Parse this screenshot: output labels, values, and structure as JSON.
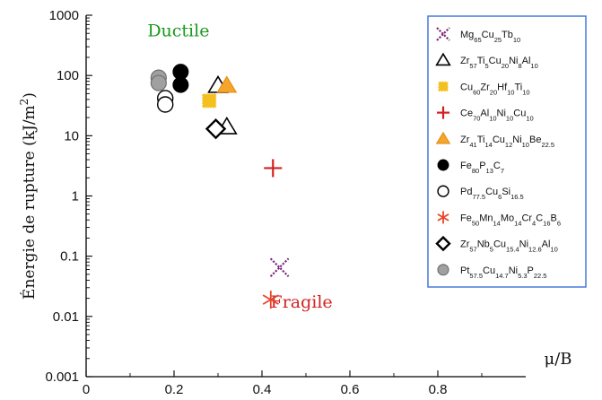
{
  "chart_data": {
    "type": "scatter",
    "title": "",
    "xlabel": "μ/B",
    "ylabel": "Énergie de rupture (kJ/m²)",
    "ylabel_parts": [
      {
        "t": "Énergie de rupture (kJ/m",
        "sup": false
      },
      {
        "t": "2",
        "sup": true
      },
      {
        "t": ")",
        "sup": false
      }
    ],
    "xlim": [
      0,
      1.0
    ],
    "ylim": [
      0.001,
      1000
    ],
    "yscale": "log",
    "x_ticks": [
      0,
      0.2,
      0.4,
      0.6,
      0.8
    ],
    "x_tick_labels": [
      "0",
      "0.2",
      "0.4",
      "0.6",
      "0.8"
    ],
    "y_ticks": [
      0.001,
      0.01,
      0.1,
      1,
      10,
      100,
      1000
    ],
    "y_tick_labels": [
      "0.001",
      "0.01",
      "0.1",
      "1",
      "10",
      "100",
      "1000"
    ],
    "grid": false,
    "legend_position": "top-right",
    "annotations": [
      {
        "text": "Ductile",
        "x": 0.21,
        "y": 450,
        "color": "#1a9a1a"
      },
      {
        "text": "Fragile",
        "x": 0.49,
        "y": 0.014,
        "color": "#d42020"
      }
    ],
    "series": [
      {
        "name": "Mg65Cu25Tb10",
        "label": [
          {
            "t": "Mg",
            "s": false
          },
          {
            "t": "65",
            "s": true
          },
          {
            "t": "Cu",
            "s": false
          },
          {
            "t": "25",
            "s": true
          },
          {
            "t": "Tb",
            "s": false
          },
          {
            "t": "10",
            "s": true
          }
        ],
        "marker": "x",
        "color": "#7a2a7a",
        "points": [
          {
            "x": 0.44,
            "y": 0.065
          }
        ]
      },
      {
        "name": "Zr57Ti5Cu20Ni8Al10",
        "label": [
          {
            "t": "Zr",
            "s": false
          },
          {
            "t": "57",
            "s": true
          },
          {
            "t": "Ti",
            "s": false
          },
          {
            "t": "5",
            "s": true
          },
          {
            "t": "Cu",
            "s": false
          },
          {
            "t": "20",
            "s": true
          },
          {
            "t": "Ni",
            "s": false
          },
          {
            "t": "8",
            "s": true
          },
          {
            "t": "Al",
            "s": false
          },
          {
            "t": "10",
            "s": true
          }
        ],
        "marker": "triangle-open",
        "color": "#000000",
        "points": [
          {
            "x": 0.3,
            "y": 68
          },
          {
            "x": 0.32,
            "y": 14
          }
        ]
      },
      {
        "name": "Cu60Zr20Hf10Ti10",
        "label": [
          {
            "t": "Cu",
            "s": false
          },
          {
            "t": "60",
            "s": true
          },
          {
            "t": "Zr",
            "s": false
          },
          {
            "t": "20",
            "s": true
          },
          {
            "t": "Hf",
            "s": false
          },
          {
            "t": "10",
            "s": true
          },
          {
            "t": "Ti",
            "s": false
          },
          {
            "t": "10",
            "s": true
          }
        ],
        "marker": "square-dotted",
        "color": "#f4c020",
        "points": [
          {
            "x": 0.28,
            "y": 38
          }
        ]
      },
      {
        "name": "Ce70Al10Ni10Cu10",
        "label": [
          {
            "t": "Ce",
            "s": false
          },
          {
            "t": "70",
            "s": true
          },
          {
            "t": "Al",
            "s": false
          },
          {
            "t": "10",
            "s": true
          },
          {
            "t": "Ni",
            "s": false
          },
          {
            "t": "10",
            "s": true
          },
          {
            "t": "Cu",
            "s": false
          },
          {
            "t": "10",
            "s": true
          }
        ],
        "marker": "plus",
        "color": "#d42020",
        "points": [
          {
            "x": 0.425,
            "y": 2.9
          }
        ]
      },
      {
        "name": "Zr41Ti14Cu12Ni10Be22.5",
        "label": [
          {
            "t": "Zr",
            "s": false
          },
          {
            "t": "41",
            "s": true
          },
          {
            "t": "Ti",
            "s": false
          },
          {
            "t": "14",
            "s": true
          },
          {
            "t": "Cu",
            "s": false
          },
          {
            "t": "12",
            "s": true
          },
          {
            "t": "Ni",
            "s": false
          },
          {
            "t": "10",
            "s": true
          },
          {
            "t": "Be",
            "s": false
          },
          {
            "t": "22.5",
            "s": true
          }
        ],
        "marker": "triangle-filled",
        "color": "#f4a52a",
        "points": [
          {
            "x": 0.32,
            "y": 68
          }
        ]
      },
      {
        "name": "Fe80P13C7",
        "label": [
          {
            "t": "Fe",
            "s": false
          },
          {
            "t": "80",
            "s": true
          },
          {
            "t": "P",
            "s": false
          },
          {
            "t": "13",
            "s": true
          },
          {
            "t": "C",
            "s": false
          },
          {
            "t": "7",
            "s": true
          }
        ],
        "marker": "circle-filled",
        "color": "#000000",
        "points": [
          {
            "x": 0.215,
            "y": 115
          },
          {
            "x": 0.215,
            "y": 70
          }
        ]
      },
      {
        "name": "Pd77.5Cu6Si16.5",
        "label": [
          {
            "t": "Pd",
            "s": false
          },
          {
            "t": "77.5",
            "s": true
          },
          {
            "t": "Cu",
            "s": false
          },
          {
            "t": "6",
            "s": true
          },
          {
            "t": "Si",
            "s": false
          },
          {
            "t": "16.5",
            "s": true
          }
        ],
        "marker": "circle-open",
        "color": "#000000",
        "points": [
          {
            "x": 0.18,
            "y": 42
          },
          {
            "x": 0.18,
            "y": 33
          }
        ]
      },
      {
        "name": "Fe50Mn14Mo14Cr4C16B6",
        "label": [
          {
            "t": "Fe",
            "s": false
          },
          {
            "t": "50",
            "s": true
          },
          {
            "t": "Mn",
            "s": false
          },
          {
            "t": "14",
            "s": true
          },
          {
            "t": "Mo",
            "s": false
          },
          {
            "t": "14",
            "s": true
          },
          {
            "t": "Cr",
            "s": false
          },
          {
            "t": "4",
            "s": true
          },
          {
            "t": "C",
            "s": false
          },
          {
            "t": "16",
            "s": true
          },
          {
            "t": "B",
            "s": false
          },
          {
            "t": "6",
            "s": true
          }
        ],
        "marker": "asterisk",
        "color": "#e8462a",
        "points": [
          {
            "x": 0.42,
            "y": 0.019
          }
        ]
      },
      {
        "name": "Zr57Nb5Cu15.4Ni12.6Al10",
        "label": [
          {
            "t": "Zr",
            "s": false
          },
          {
            "t": "57",
            "s": true
          },
          {
            "t": "Nb",
            "s": false
          },
          {
            "t": "5",
            "s": true
          },
          {
            "t": "Cu",
            "s": false
          },
          {
            "t": "15.4",
            "s": true
          },
          {
            "t": "Ni",
            "s": false
          },
          {
            "t": "12.6",
            "s": true
          },
          {
            "t": "Al",
            "s": false
          },
          {
            "t": "10",
            "s": true
          }
        ],
        "marker": "diamond-open",
        "color": "#000000",
        "points": [
          {
            "x": 0.295,
            "y": 13
          }
        ]
      },
      {
        "name": "Pt57.5Cu14.7Ni5.3P22.5",
        "label": [
          {
            "t": "Pt",
            "s": false
          },
          {
            "t": "57.5",
            "s": true
          },
          {
            "t": "Cu",
            "s": false
          },
          {
            "t": "14.7",
            "s": true
          },
          {
            "t": "Ni",
            "s": false
          },
          {
            "t": "5.3",
            "s": true
          },
          {
            "t": "P",
            "s": false
          },
          {
            "t": "22.5",
            "s": true
          }
        ],
        "marker": "circle-gray",
        "color": "#a0a0a0",
        "points": [
          {
            "x": 0.165,
            "y": 92
          },
          {
            "x": 0.165,
            "y": 75
          }
        ]
      }
    ]
  }
}
